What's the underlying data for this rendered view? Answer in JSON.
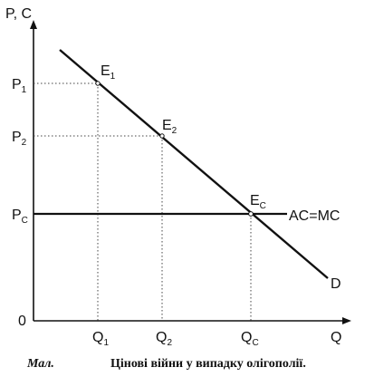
{
  "axes": {
    "y_label": "P, C",
    "x_label": "Q",
    "origin_label": "0"
  },
  "price_labels": [
    {
      "main": "P",
      "sub": "1"
    },
    {
      "main": "P",
      "sub": "2"
    },
    {
      "main": "P",
      "sub": "C"
    }
  ],
  "quantity_labels": [
    {
      "main": "Q",
      "sub": "1"
    },
    {
      "main": "Q",
      "sub": "2"
    },
    {
      "main": "Q",
      "sub": "C"
    }
  ],
  "points": [
    {
      "main": "E",
      "sub": "1"
    },
    {
      "main": "E",
      "sub": "2"
    },
    {
      "main": "E",
      "sub": "C"
    }
  ],
  "lines": {
    "demand_label": "D",
    "cost_label": "AC=MC"
  },
  "caption": {
    "prefix": "Мал.",
    "text": "Цінові війни у випадку олігополії."
  }
}
